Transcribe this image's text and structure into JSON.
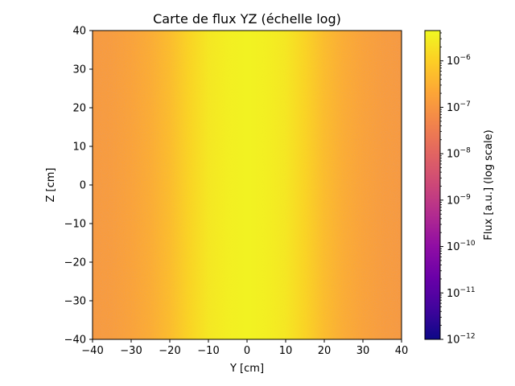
{
  "chart_data": {
    "type": "heatmap",
    "title": "Carte de flux YZ (échelle log)",
    "xlabel": "Y [cm]",
    "ylabel": "Z [cm]",
    "xlim": [
      -40,
      40
    ],
    "ylim": [
      -40,
      40
    ],
    "xticks": [
      -40,
      -30,
      -20,
      -10,
      0,
      10,
      20,
      30,
      40
    ],
    "yticks": [
      -40,
      -30,
      -20,
      -10,
      0,
      10,
      20,
      30,
      40
    ],
    "xtick_labels": [
      "−40",
      "−30",
      "−20",
      "−10",
      "0",
      "10",
      "20",
      "30",
      "40"
    ],
    "ytick_labels": [
      "−40",
      "−30",
      "−20",
      "−10",
      "0",
      "10",
      "20",
      "30",
      "40"
    ],
    "colormap": "plasma",
    "colorbar": {
      "label": "Flux [a.u.] (log scale)",
      "scale": "log",
      "range": [
        1e-12,
        4.5e-06
      ],
      "ticks": [
        1e-12,
        1e-11,
        1e-10,
        1e-09,
        1e-08,
        1e-07,
        1e-06
      ],
      "tick_exponents": [
        "−12",
        "−11",
        "−10",
        "−9",
        "−8",
        "−7",
        "−6"
      ],
      "tick_base": "10"
    },
    "y_profile": {
      "y": [
        -40,
        -35,
        -30,
        -25,
        -20,
        -15,
        -10,
        -5,
        0,
        5,
        10,
        15,
        20,
        25,
        30,
        35,
        40
      ],
      "flux": [
        1.2e-07,
        1.4e-07,
        1.8e-07,
        2.8e-07,
        5e-07,
        1.2e-06,
        2.4e-06,
        3.2e-06,
        3.5e-06,
        3.2e-06,
        2.4e-06,
        1.2e-06,
        5e-07,
        2.8e-07,
        1.8e-07,
        1.4e-07,
        1.2e-07
      ]
    },
    "z_variation": "nearly uniform along Z",
    "grid": false
  }
}
